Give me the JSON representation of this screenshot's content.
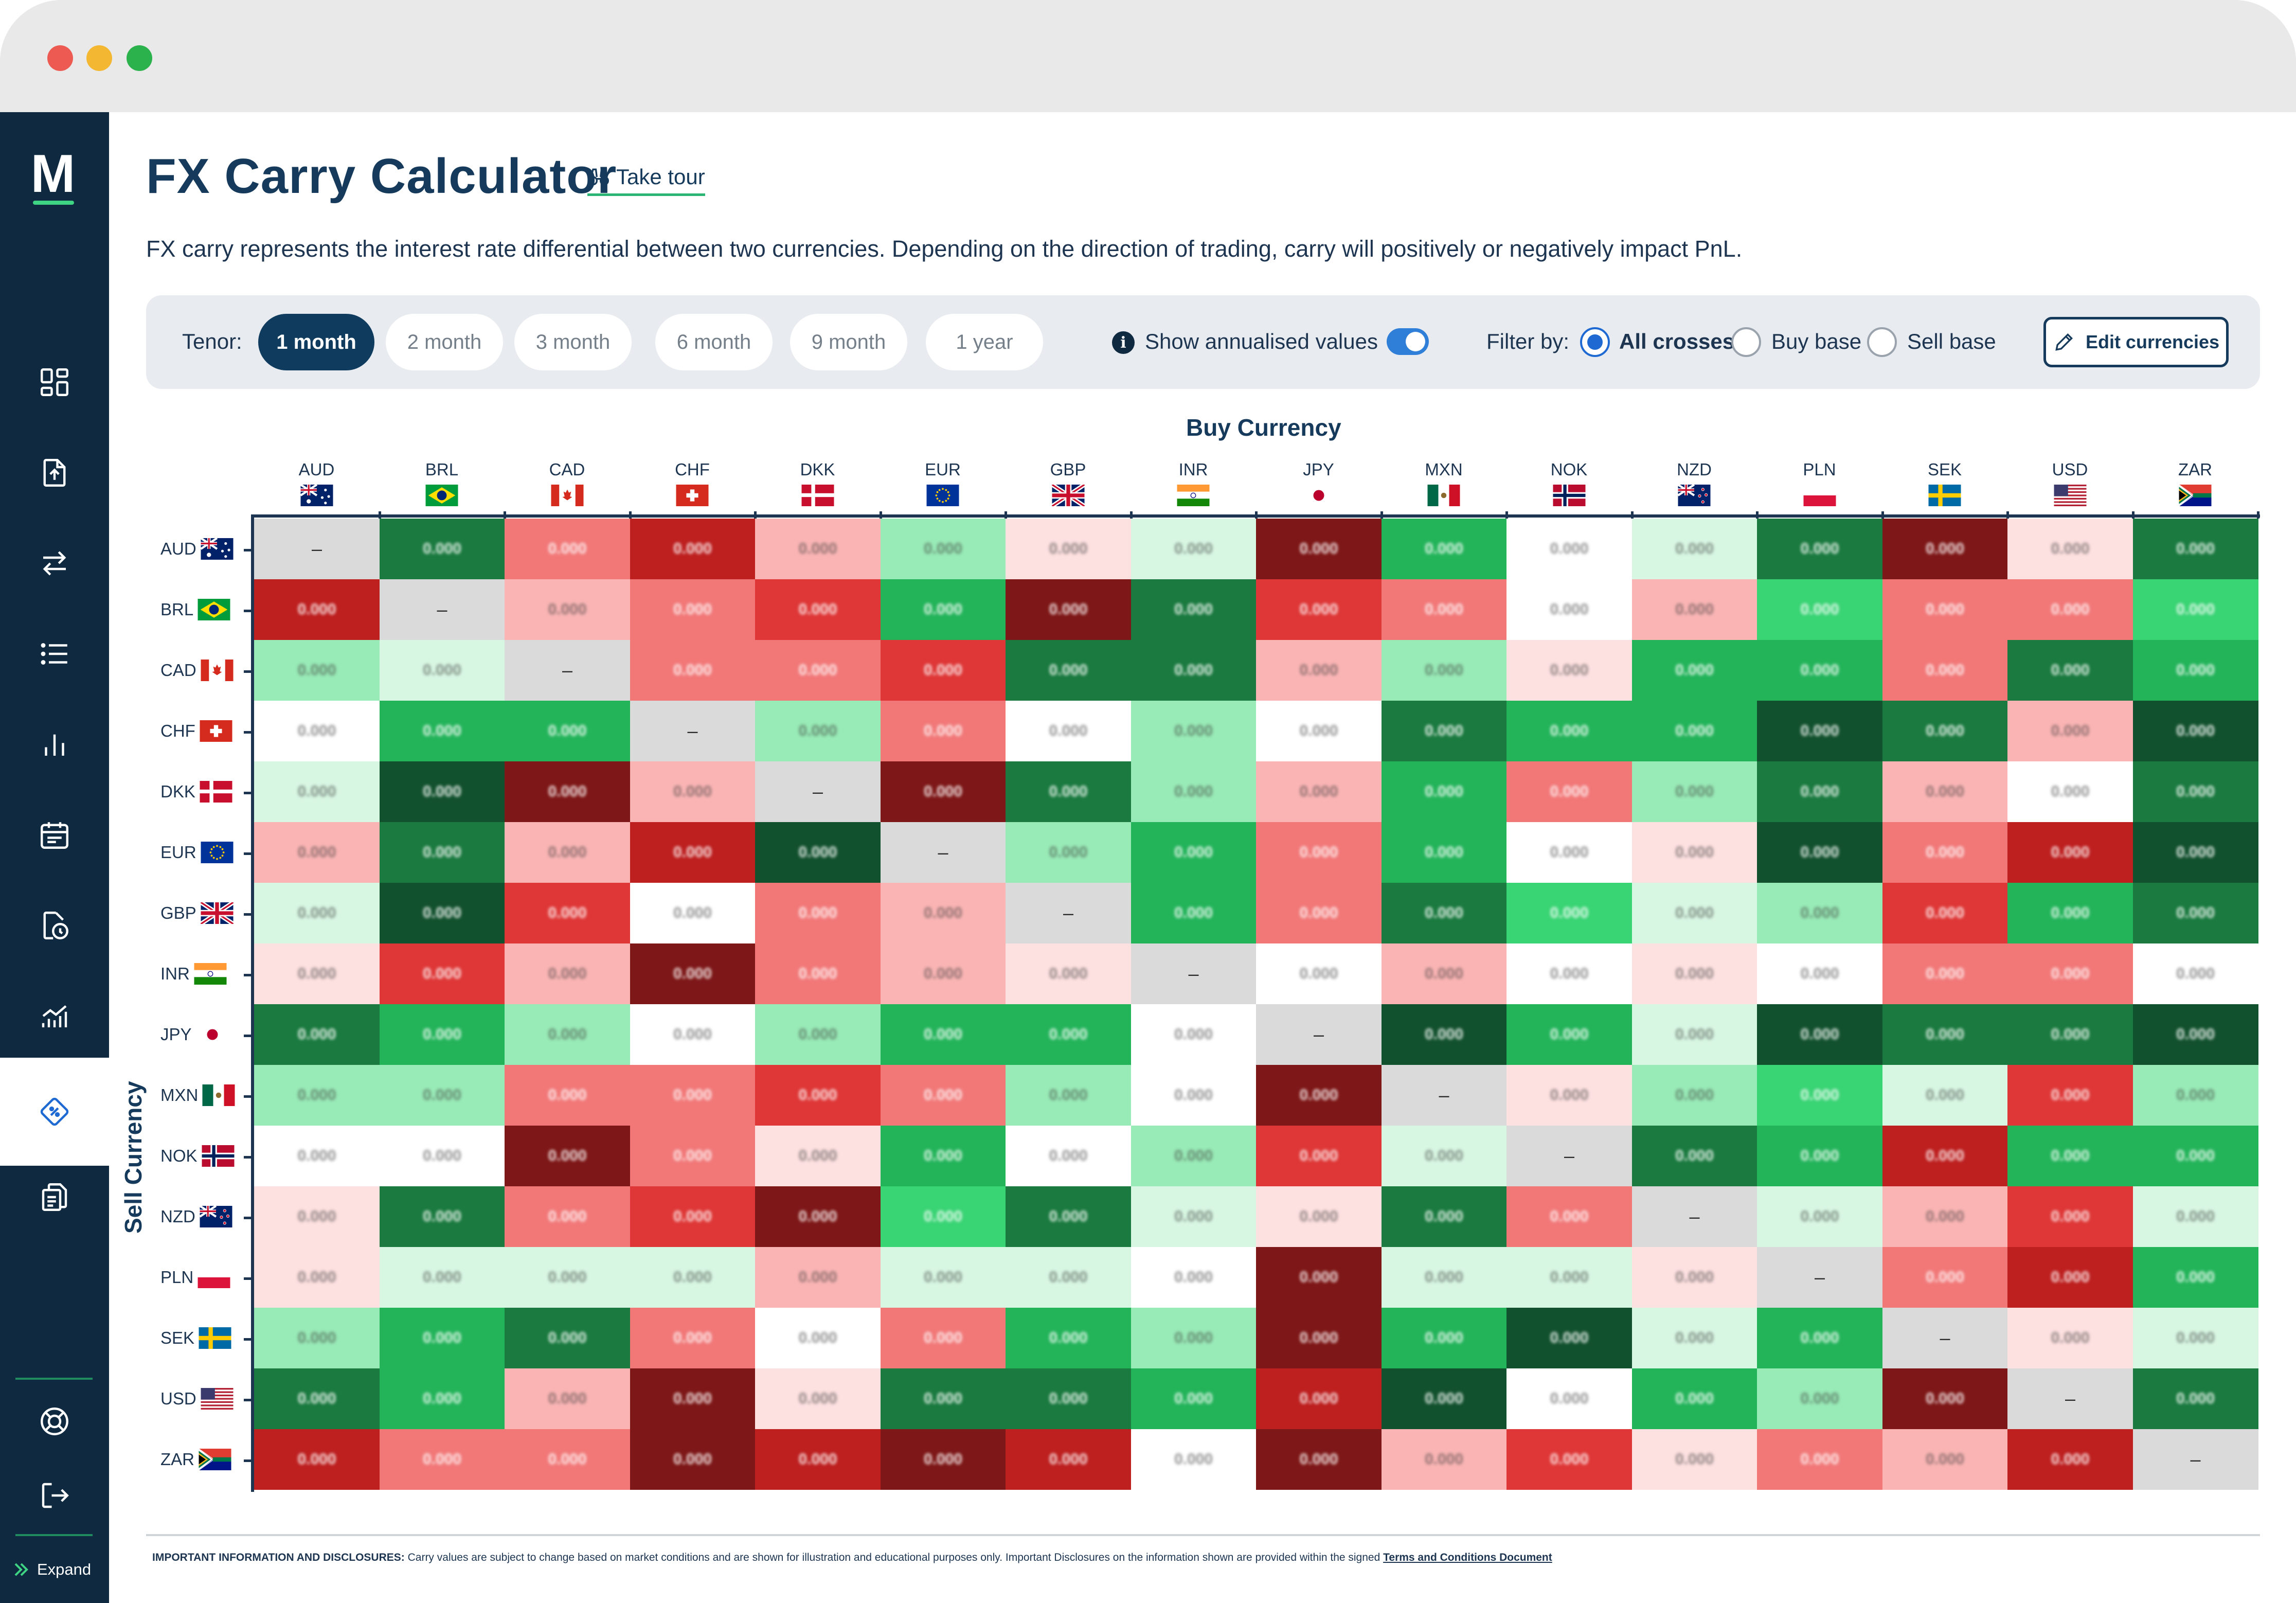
{
  "app": {
    "logo_letter": "M",
    "expand_label": "Expand"
  },
  "page": {
    "title": "FX Carry Calculator",
    "tour_label": "Take tour",
    "description": "FX carry represents the interest rate differential between two currencies. Depending on the direction of trading, carry will positively or negatively impact PnL."
  },
  "toolbar": {
    "tenor_label": "Tenor:",
    "tenors": [
      "1 month",
      "2 month",
      "3 month",
      "6 month",
      "9 month",
      "1 year"
    ],
    "active_tenor": "1 month",
    "annualised_label": "Show annualised values",
    "annualised_on": true,
    "filter_label": "Filter by:",
    "filters": [
      "All crosses",
      "Buy base",
      "Sell base"
    ],
    "active_filter": "All crosses",
    "edit_label": "Edit currencies"
  },
  "matrix": {
    "buy_axis_label": "Buy Currency",
    "sell_axis_label": "Sell Currency",
    "currencies": [
      "AUD",
      "BRL",
      "CAD",
      "CHF",
      "DKK",
      "EUR",
      "GBP",
      "INR",
      "JPY",
      "MXN",
      "NOK",
      "NZD",
      "PLN",
      "SEK",
      "USD",
      "ZAR"
    ],
    "colors": {
      "g4": "#12512e",
      "g3": "#1a7a3f",
      "g2": "#23b45a",
      "g1": "#39d474",
      "g0": "#98eab6",
      "g00": "#d8f7e3",
      "n": "#ffffff",
      "r00": "#fde0e0",
      "r0": "#fab4b4",
      "r1": "#f27878",
      "r2": "#df3737",
      "r3": "#be1f1f",
      "r4": "#7e1717",
      "diag": "#dadada"
    },
    "rows": [
      [
        "diag",
        "g3",
        "r1",
        "r3",
        "r0",
        "g0",
        "r00",
        "g00",
        "r4",
        "g2",
        "n",
        "g00",
        "g3",
        "r4",
        "r00",
        "g3"
      ],
      [
        "r3",
        "diag",
        "r0",
        "r1",
        "r2",
        "g2",
        "r4",
        "g3",
        "r2",
        "r1",
        "n",
        "r0",
        "g1",
        "r1",
        "r1",
        "g1"
      ],
      [
        "g0",
        "g00",
        "diag",
        "r1",
        "r1",
        "r2",
        "g3",
        "g3",
        "r0",
        "g0",
        "r00",
        "g2",
        "g2",
        "r1",
        "g3",
        "g2"
      ],
      [
        "n",
        "g2",
        "g2",
        "diag",
        "g0",
        "r1",
        "n",
        "g0",
        "n",
        "g3",
        "g2",
        "g2",
        "g4",
        "g3",
        "r0",
        "g4"
      ],
      [
        "g00",
        "g4",
        "r4",
        "r0",
        "diag",
        "r4",
        "g3",
        "g0",
        "r0",
        "g2",
        "r1",
        "g0",
        "g3",
        "r0",
        "n",
        "g3"
      ],
      [
        "r0",
        "g3",
        "r0",
        "r3",
        "g4",
        "diag",
        "g0",
        "g2",
        "r1",
        "g2",
        "n",
        "r00",
        "g4",
        "r1",
        "r3",
        "g4"
      ],
      [
        "g00",
        "g4",
        "r2",
        "n",
        "r1",
        "r0",
        "diag",
        "g2",
        "r1",
        "g3",
        "g1",
        "g00",
        "g0",
        "r2",
        "g2",
        "g3"
      ],
      [
        "r00",
        "r2",
        "r0",
        "r4",
        "r1",
        "r0",
        "r00",
        "diag",
        "n",
        "r0",
        "n",
        "r00",
        "n",
        "r1",
        "r1",
        "n"
      ],
      [
        "g3",
        "g2",
        "g0",
        "n",
        "g0",
        "g2",
        "g2",
        "n",
        "diag",
        "g4",
        "g2",
        "g00",
        "g4",
        "g3",
        "g3",
        "g4"
      ],
      [
        "g0",
        "g0",
        "r1",
        "r1",
        "r2",
        "r1",
        "g0",
        "n",
        "r4",
        "diag",
        "r00",
        "g0",
        "g1",
        "g00",
        "r2",
        "g0"
      ],
      [
        "n",
        "n",
        "r4",
        "r1",
        "r00",
        "g2",
        "n",
        "g0",
        "r2",
        "g00",
        "diag",
        "g3",
        "g2",
        "r3",
        "g2",
        "g2"
      ],
      [
        "r00",
        "g3",
        "r1",
        "r2",
        "r4",
        "g1",
        "g3",
        "g00",
        "r00",
        "g3",
        "r1",
        "diag",
        "g00",
        "r0",
        "r2",
        "g00"
      ],
      [
        "r00",
        "g00",
        "g00",
        "g00",
        "r0",
        "g00",
        "g00",
        "n",
        "r4",
        "g00",
        "g00",
        "r00",
        "diag",
        "r1",
        "r3",
        "g2"
      ],
      [
        "g0",
        "g2",
        "g3",
        "r1",
        "n",
        "r1",
        "g2",
        "g0",
        "r4",
        "g2",
        "g4",
        "g00",
        "g2",
        "diag",
        "r00",
        "g00"
      ],
      [
        "g3",
        "g2",
        "r0",
        "r4",
        "r00",
        "g3",
        "g3",
        "g2",
        "r3",
        "g4",
        "n",
        "g2",
        "g0",
        "r4",
        "diag",
        "g3"
      ],
      [
        "r3",
        "r1",
        "r1",
        "r4",
        "r3",
        "r4",
        "r3",
        "n",
        "r4",
        "r0",
        "r2",
        "r00",
        "r1",
        "r0",
        "r3",
        "diag"
      ]
    ]
  },
  "footer": {
    "heading": "IMPORTANT INFORMATION AND DISCLOSURES:",
    "body": " Carry values are subject to change based on market conditions and are shown for illustration and educational purposes only. Important Disclosures on the information shown are provided within the signed ",
    "link": "Terms and Conditions Document"
  }
}
